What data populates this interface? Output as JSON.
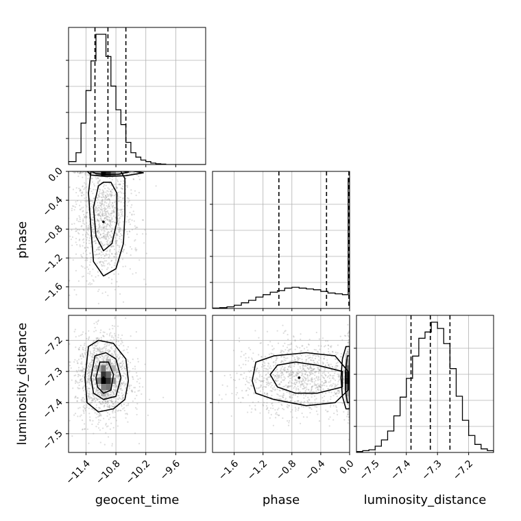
{
  "chart_data": {
    "type": "corner",
    "parameters": [
      "geocent_time",
      "phase",
      "luminosity_distance"
    ],
    "axis_labels": {
      "geocent_time": "geocent_time",
      "phase": "phase",
      "luminosity_distance": "luminosity_distance"
    },
    "ranges": {
      "geocent_time": [
        -11.75,
        -9.0
      ],
      "phase": [
        -1.9,
        0.0
      ],
      "luminosity_distance": [
        -7.56,
        -7.12
      ]
    },
    "ticks": {
      "geocent_time": [
        -11.4,
        -10.8,
        -10.2,
        -9.6
      ],
      "phase": [
        -1.6,
        -1.2,
        -0.8,
        -0.4,
        0.0
      ],
      "luminosity_distance": [
        -7.5,
        -7.4,
        -7.3,
        -7.2
      ]
    },
    "tick_labels": {
      "geocent_time": [
        "−11.4",
        "−10.8",
        "−10.2",
        "−9.6"
      ],
      "phase": [
        "−1.6",
        "−1.2",
        "−0.8",
        "−0.4",
        "0.0"
      ],
      "luminosity_distance": [
        "−7.5",
        "−7.4",
        "−7.3",
        "−7.2"
      ]
    },
    "grid": true,
    "marginals": {
      "geocent_time": {
        "bin_edges": [
          -11.75,
          -11.6,
          -11.5,
          -11.4,
          -11.3,
          -11.2,
          -11.1,
          -11.0,
          -10.9,
          -10.8,
          -10.7,
          -10.6,
          -10.5,
          -10.4,
          -10.3,
          -10.2,
          -10.1,
          -10.0,
          -9.9,
          -9.8,
          -9.7,
          -9.6,
          -9.0
        ],
        "counts": [
          2,
          8,
          28,
          50,
          70,
          88,
          88,
          73,
          53,
          37,
          27,
          15,
          8,
          5,
          3,
          2,
          1,
          0.5,
          0.3,
          0,
          0,
          0
        ],
        "quantiles": [
          -11.22,
          -10.96,
          -10.6
        ]
      },
      "phase": {
        "bin_edges": [
          -1.9,
          -1.8,
          -1.7,
          -1.6,
          -1.5,
          -1.4,
          -1.3,
          -1.2,
          -1.1,
          -1.0,
          -0.9,
          -0.8,
          -0.7,
          -0.6,
          -0.5,
          -0.4,
          -0.3,
          -0.2,
          -0.1,
          -0.02,
          0.0
        ],
        "counts": [
          0.5,
          1,
          2,
          4,
          7,
          10,
          14,
          17,
          20,
          22,
          25,
          26,
          25,
          24,
          23,
          21,
          19,
          18,
          17,
          160
        ],
        "quantiles": [
          -0.98,
          -0.32,
          -0.01
        ]
      },
      "luminosity_distance": {
        "bin_edges": [
          -7.56,
          -7.54,
          -7.52,
          -7.5,
          -7.48,
          -7.46,
          -7.44,
          -7.42,
          -7.4,
          -7.38,
          -7.36,
          -7.34,
          -7.32,
          -7.3,
          -7.28,
          -7.26,
          -7.24,
          -7.22,
          -7.2,
          -7.18,
          -7.16,
          -7.14,
          -7.12
        ],
        "counts": [
          1,
          2,
          3,
          7,
          14,
          24,
          41,
          62,
          83,
          108,
          128,
          135,
          146,
          139,
          122,
          94,
          63,
          36,
          19,
          9,
          4,
          2
        ],
        "quantiles": [
          -7.385,
          -7.323,
          -7.26
        ]
      }
    },
    "joint": [
      {
        "x": "geocent_time",
        "y": "phase",
        "center": [
          -11.05,
          -0.7
        ],
        "spread": [
          0.3,
          0.4
        ],
        "pile_at_y": 0.0,
        "density_cells": [
          {
            "x": [
              -11.1,
              -11.0
            ],
            "y": [
              -0.06,
              0.0
            ],
            "w": 1.0
          },
          {
            "x": [
              -11.0,
              -10.9
            ],
            "y": [
              -0.06,
              0.0
            ],
            "w": 0.85
          },
          {
            "x": [
              -10.9,
              -10.8
            ],
            "y": [
              -0.06,
              0.0
            ],
            "w": 0.55
          },
          {
            "x": [
              -11.2,
              -11.1
            ],
            "y": [
              -0.06,
              0.0
            ],
            "w": 0.4
          },
          {
            "x": [
              -10.8,
              -10.7
            ],
            "y": [
              -0.06,
              0.0
            ],
            "w": 0.25
          }
        ],
        "contours": [
          {
            "level": 1,
            "points": [
              [
                -11.3,
                0.0
              ],
              [
                -11.35,
                -0.3
              ],
              [
                -11.3,
                -0.8
              ],
              [
                -11.25,
                -1.25
              ],
              [
                -11.05,
                -1.45
              ],
              [
                -10.8,
                -1.35
              ],
              [
                -10.65,
                -1.0
              ],
              [
                -10.62,
                -0.6
              ],
              [
                -10.62,
                -0.1
              ],
              [
                -10.7,
                0.0
              ]
            ]
          },
          {
            "level": 2,
            "points": [
              [
                -11.15,
                -0.2
              ],
              [
                -11.25,
                -0.5
              ],
              [
                -11.2,
                -0.9
              ],
              [
                -11.05,
                -1.1
              ],
              [
                -10.88,
                -1.0
              ],
              [
                -10.78,
                -0.7
              ],
              [
                -10.78,
                -0.3
              ],
              [
                -10.9,
                -0.15
              ],
              [
                -11.05,
                -0.15
              ]
            ]
          },
          {
            "level": 3,
            "points": [
              [
                -11.4,
                0.02
              ],
              [
                -11.3,
                -0.05
              ],
              [
                -11.0,
                -0.07
              ],
              [
                -10.6,
                -0.06
              ],
              [
                -10.25,
                -0.02
              ],
              [
                -10.6,
                0.02
              ],
              [
                -11.0,
                0.03
              ]
            ]
          },
          {
            "level": 4,
            "points": [
              [
                -11.35,
                0.02
              ],
              [
                -11.2,
                -0.03
              ],
              [
                -11.0,
                -0.045
              ],
              [
                -10.75,
                -0.04
              ],
              [
                -10.55,
                -0.01
              ],
              [
                -10.8,
                0.02
              ]
            ]
          }
        ]
      },
      {
        "x": "geocent_time",
        "y": "luminosity_distance",
        "center": [
          -11.05,
          -7.32
        ],
        "spread": [
          0.28,
          0.07
        ],
        "density_cells": [
          {
            "x": [
              -11.1,
              -11.0
            ],
            "y": [
              -7.34,
              -7.32
            ],
            "w": 1.0
          },
          {
            "x": [
              -11.0,
              -10.9
            ],
            "y": [
              -7.34,
              -7.32
            ],
            "w": 0.8
          },
          {
            "x": [
              -11.1,
              -11.0
            ],
            "y": [
              -7.32,
              -7.3
            ],
            "w": 0.8
          },
          {
            "x": [
              -11.0,
              -10.9
            ],
            "y": [
              -7.32,
              -7.3
            ],
            "w": 0.6
          },
          {
            "x": [
              -11.1,
              -11.0
            ],
            "y": [
              -7.3,
              -7.28
            ],
            "w": 0.55
          },
          {
            "x": [
              -11.0,
              -10.9
            ],
            "y": [
              -7.36,
              -7.34
            ],
            "w": 0.55
          },
          {
            "x": [
              -11.2,
              -11.1
            ],
            "y": [
              -7.34,
              -7.32
            ],
            "w": 0.5
          },
          {
            "x": [
              -10.9,
              -10.8
            ],
            "y": [
              -7.34,
              -7.32
            ],
            "w": 0.4
          },
          {
            "x": [
              -11.1,
              -11.0
            ],
            "y": [
              -7.36,
              -7.34
            ],
            "w": 0.5
          },
          {
            "x": [
              -10.9,
              -10.8
            ],
            "y": [
              -7.3,
              -7.28
            ],
            "w": 0.3
          },
          {
            "x": [
              -11.2,
              -11.1
            ],
            "y": [
              -7.3,
              -7.28
            ],
            "w": 0.3
          },
          {
            "x": [
              -11.0,
              -10.9
            ],
            "y": [
              -7.28,
              -7.26
            ],
            "w": 0.3
          },
          {
            "x": [
              -11.1,
              -11.0
            ],
            "y": [
              -7.38,
              -7.36
            ],
            "w": 0.3
          }
        ],
        "contours": [
          {
            "level": 1,
            "points": [
              [
                -11.42,
                -7.32
              ],
              [
                -11.35,
                -7.22
              ],
              [
                -11.15,
                -7.2
              ],
              [
                -10.85,
                -7.21
              ],
              [
                -10.6,
                -7.26
              ],
              [
                -10.55,
                -7.33
              ],
              [
                -10.62,
                -7.39
              ],
              [
                -10.85,
                -7.42
              ],
              [
                -11.15,
                -7.43
              ],
              [
                -11.38,
                -7.4
              ]
            ]
          },
          {
            "level": 2,
            "points": [
              [
                -11.3,
                -7.32
              ],
              [
                -11.22,
                -7.25
              ],
              [
                -11.0,
                -7.24
              ],
              [
                -10.8,
                -7.26
              ],
              [
                -10.7,
                -7.32
              ],
              [
                -10.8,
                -7.38
              ],
              [
                -11.05,
                -7.39
              ],
              [
                -11.25,
                -7.37
              ]
            ]
          },
          {
            "level": 3,
            "points": [
              [
                -11.2,
                -7.32
              ],
              [
                -11.12,
                -7.27
              ],
              [
                -10.95,
                -7.27
              ],
              [
                -10.85,
                -7.31
              ],
              [
                -10.9,
                -7.36
              ],
              [
                -11.05,
                -7.37
              ],
              [
                -11.17,
                -7.35
              ]
            ]
          }
        ]
      },
      {
        "x": "phase",
        "y": "luminosity_distance",
        "center": [
          -0.7,
          -7.32
        ],
        "spread": [
          0.4,
          0.06
        ],
        "pile_at_x": 0.0,
        "density_cells": [
          {
            "x": [
              -0.06,
              0.0
            ],
            "y": [
              -7.34,
              -7.32
            ],
            "w": 0.9
          },
          {
            "x": [
              -0.06,
              0.0
            ],
            "y": [
              -7.32,
              -7.3
            ],
            "w": 0.85
          },
          {
            "x": [
              -0.06,
              0.0
            ],
            "y": [
              -7.3,
              -7.28
            ],
            "w": 0.6
          },
          {
            "x": [
              -0.06,
              0.0
            ],
            "y": [
              -7.36,
              -7.34
            ],
            "w": 0.6
          },
          {
            "x": [
              -0.06,
              0.0
            ],
            "y": [
              -7.28,
              -7.26
            ],
            "w": 0.35
          },
          {
            "x": [
              -0.06,
              0.0
            ],
            "y": [
              -7.38,
              -7.36
            ],
            "w": 0.35
          },
          {
            "x": [
              -0.06,
              0.0
            ],
            "y": [
              -7.26,
              -7.24
            ],
            "w": 0.2
          },
          {
            "x": [
              -0.06,
              0.0
            ],
            "y": [
              -7.4,
              -7.38
            ],
            "w": 0.2
          }
        ],
        "contours": [
          {
            "level": 1,
            "points": [
              [
                -1.35,
                -7.33
              ],
              [
                -1.3,
                -7.27
              ],
              [
                -1.05,
                -7.25
              ],
              [
                -0.6,
                -7.24
              ],
              [
                -0.2,
                -7.25
              ],
              [
                -0.02,
                -7.3
              ],
              [
                -0.02,
                -7.36
              ],
              [
                -0.2,
                -7.4
              ],
              [
                -0.6,
                -7.41
              ],
              [
                -1.05,
                -7.39
              ],
              [
                -1.3,
                -7.37
              ]
            ]
          },
          {
            "level": 2,
            "points": [
              [
                -1.1,
                -7.31
              ],
              [
                -1.0,
                -7.28
              ],
              [
                -0.75,
                -7.27
              ],
              [
                -0.45,
                -7.28
              ],
              [
                -0.1,
                -7.3
              ],
              [
                -0.1,
                -7.35
              ],
              [
                -0.45,
                -7.37
              ],
              [
                -0.75,
                -7.37
              ],
              [
                -1.0,
                -7.35
              ]
            ]
          },
          {
            "level": 3,
            "points": [
              [
                -0.05,
                -7.22
              ],
              [
                -0.1,
                -7.26
              ],
              [
                -0.12,
                -7.32
              ],
              [
                -0.1,
                -7.38
              ],
              [
                -0.05,
                -7.42
              ],
              [
                0.0,
                -7.42
              ],
              [
                0.0,
                -7.22
              ]
            ]
          },
          {
            "level": 4,
            "points": [
              [
                -0.03,
                -7.25
              ],
              [
                -0.06,
                -7.3
              ],
              [
                -0.06,
                -7.36
              ],
              [
                -0.03,
                -7.4
              ],
              [
                0.0,
                -7.4
              ],
              [
                0.0,
                -7.25
              ]
            ]
          }
        ]
      }
    ]
  }
}
